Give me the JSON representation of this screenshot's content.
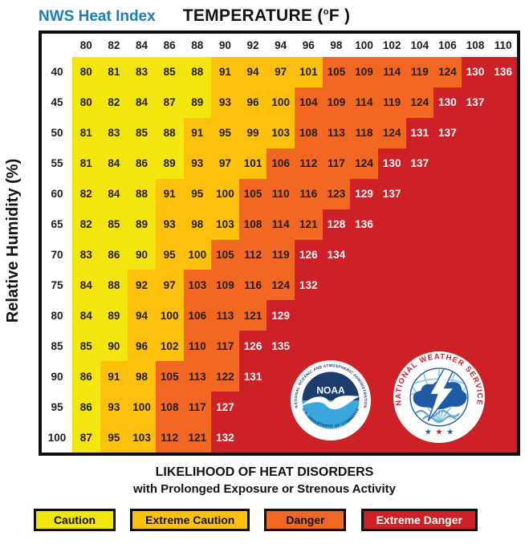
{
  "title": {
    "brand": "NWS Heat Index",
    "temp_prefix": "TEMPERATURE (",
    "temp_degree": "o",
    "temp_suffix": "F )"
  },
  "y_axis_label": "Relative Humidity (%)",
  "footer": {
    "title": "LIKELIHOOD OF HEAT DISORDERS",
    "subtitle": "with Prolonged Exposure or Strenous Activity"
  },
  "legend": [
    {
      "label": "Caution",
      "code": "y"
    },
    {
      "label": "Extreme Caution",
      "code": "a"
    },
    {
      "label": "Danger",
      "code": "o"
    },
    {
      "label": "Extreme Danger",
      "code": "r"
    }
  ],
  "colors": {
    "caution": "#F3E50E",
    "extreme_caution": "#FCC00D",
    "danger": "#F26822",
    "extreme_danger": "#CE2127",
    "brand_blue": "#1A7CC2"
  },
  "logos": {
    "noaa": {
      "name": "NOAA",
      "ring_top": "NATIONAL OCEANIC AND ATMOSPHERIC ADMINISTRATION",
      "ring_bottom": "U.S. DEPARTMENT OF COMMERCE",
      "navy": "#1C3C6D",
      "cyan": "#3BA7DE"
    },
    "nws": {
      "ring": "NATIONAL WEATHER SERVICE",
      "stars": [
        "★",
        "★",
        "★"
      ],
      "star_colors": [
        "#1E5AA5",
        "#C8202B",
        "#1E5AA5"
      ],
      "red": "#C8202B",
      "blue": "#1E5AA5"
    }
  },
  "chart_data": {
    "type": "heatmap",
    "title": "NWS Heat Index",
    "xlabel": "TEMPERATURE (°F)",
    "ylabel": "Relative Humidity (%)",
    "x": [
      80,
      82,
      84,
      86,
      88,
      90,
      92,
      94,
      96,
      98,
      100,
      102,
      104,
      106,
      108,
      110
    ],
    "y": [
      40,
      45,
      50,
      55,
      60,
      65,
      70,
      75,
      80,
      85,
      90,
      95,
      100
    ],
    "values": [
      [
        80,
        81,
        83,
        85,
        88,
        91,
        94,
        97,
        101,
        105,
        109,
        114,
        119,
        124,
        130,
        136
      ],
      [
        80,
        82,
        84,
        87,
        89,
        93,
        96,
        100,
        104,
        109,
        114,
        119,
        124,
        130,
        137,
        null
      ],
      [
        81,
        83,
        85,
        88,
        91,
        95,
        99,
        103,
        108,
        113,
        118,
        124,
        131,
        137,
        null,
        null
      ],
      [
        81,
        84,
        86,
        89,
        93,
        97,
        101,
        106,
        112,
        117,
        124,
        130,
        137,
        null,
        null,
        null
      ],
      [
        82,
        84,
        88,
        91,
        95,
        100,
        105,
        110,
        116,
        123,
        129,
        137,
        null,
        null,
        null,
        null
      ],
      [
        82,
        85,
        89,
        93,
        98,
        103,
        108,
        114,
        121,
        128,
        136,
        null,
        null,
        null,
        null,
        null
      ],
      [
        83,
        86,
        90,
        95,
        100,
        105,
        112,
        119,
        126,
        134,
        null,
        null,
        null,
        null,
        null,
        null
      ],
      [
        84,
        88,
        92,
        97,
        103,
        109,
        116,
        124,
        132,
        null,
        null,
        null,
        null,
        null,
        null,
        null
      ],
      [
        84,
        89,
        94,
        100,
        106,
        113,
        121,
        129,
        null,
        null,
        null,
        null,
        null,
        null,
        null,
        null
      ],
      [
        85,
        90,
        96,
        102,
        110,
        117,
        126,
        135,
        null,
        null,
        null,
        null,
        null,
        null,
        null,
        null
      ],
      [
        86,
        91,
        98,
        105,
        113,
        122,
        131,
        null,
        null,
        null,
        null,
        null,
        null,
        null,
        null,
        null
      ],
      [
        86,
        93,
        100,
        108,
        117,
        127,
        null,
        null,
        null,
        null,
        null,
        null,
        null,
        null,
        null,
        null
      ],
      [
        87,
        95,
        103,
        112,
        121,
        132,
        null,
        null,
        null,
        null,
        null,
        null,
        null,
        null,
        null,
        null
      ]
    ],
    "cell_categories": [
      [
        "y",
        "y",
        "y",
        "y",
        "y",
        "a",
        "a",
        "a",
        "a",
        "o",
        "o",
        "o",
        "o",
        "o",
        "r",
        "r"
      ],
      [
        "y",
        "y",
        "y",
        "y",
        "y",
        "a",
        "a",
        "a",
        "o",
        "o",
        "o",
        "o",
        "o",
        "r",
        "r",
        null
      ],
      [
        "y",
        "y",
        "y",
        "y",
        "a",
        "a",
        "a",
        "a",
        "o",
        "o",
        "o",
        "o",
        "r",
        "r",
        null,
        null
      ],
      [
        "y",
        "y",
        "y",
        "y",
        "a",
        "a",
        "a",
        "o",
        "o",
        "o",
        "o",
        "r",
        "r",
        null,
        null,
        null
      ],
      [
        "y",
        "y",
        "y",
        "a",
        "a",
        "a",
        "o",
        "o",
        "o",
        "o",
        "r",
        "r",
        null,
        null,
        null,
        null
      ],
      [
        "y",
        "y",
        "y",
        "a",
        "a",
        "a",
        "o",
        "o",
        "o",
        "r",
        "r",
        null,
        null,
        null,
        null,
        null
      ],
      [
        "y",
        "y",
        "y",
        "a",
        "a",
        "o",
        "o",
        "o",
        "r",
        "r",
        null,
        null,
        null,
        null,
        null,
        null
      ],
      [
        "y",
        "y",
        "a",
        "a",
        "o",
        "o",
        "o",
        "o",
        "r",
        null,
        null,
        null,
        null,
        null,
        null,
        null
      ],
      [
        "y",
        "y",
        "a",
        "a",
        "o",
        "o",
        "o",
        "r",
        null,
        null,
        null,
        null,
        null,
        null,
        null,
        null
      ],
      [
        "y",
        "y",
        "a",
        "a",
        "o",
        "o",
        "r",
        "r",
        null,
        null,
        null,
        null,
        null,
        null,
        null,
        null
      ],
      [
        "y",
        "a",
        "a",
        "o",
        "o",
        "o",
        "r",
        null,
        null,
        null,
        null,
        null,
        null,
        null,
        null,
        null
      ],
      [
        "y",
        "a",
        "a",
        "o",
        "o",
        "r",
        null,
        null,
        null,
        null,
        null,
        null,
        null,
        null,
        null,
        null
      ],
      [
        "y",
        "a",
        "a",
        "o",
        "o",
        "r",
        null,
        null,
        null,
        null,
        null,
        null,
        null,
        null,
        null,
        null
      ]
    ],
    "legend": [
      "Caution",
      "Extreme Caution",
      "Danger",
      "Extreme Danger"
    ],
    "legend_colors": {
      "Caution": "#F3E50E",
      "Extreme Caution": "#FCC00D",
      "Danger": "#F26822",
      "Extreme Danger": "#CE2127"
    },
    "grid": false,
    "legend_position": "bottom"
  }
}
